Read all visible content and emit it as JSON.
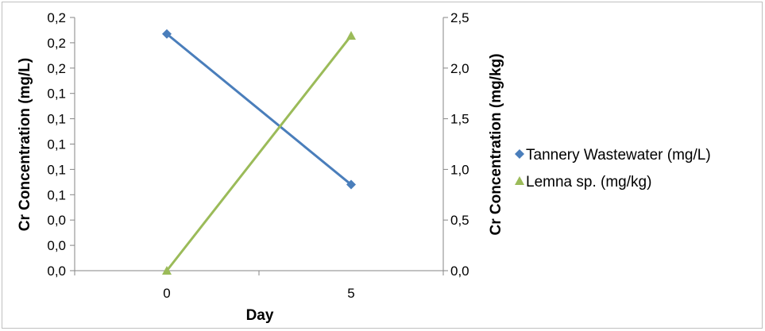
{
  "chart_data": {
    "type": "line",
    "x": [
      0,
      5
    ],
    "x_tick_labels": [
      "0",
      "5"
    ],
    "xlabel": "Day",
    "ylabel_left": "Cr Concentration (mg/L)",
    "ylabel_right": "Cr Concentration (mg/kg)",
    "y_left_tick_labels": [
      "0,0",
      "0,0",
      "0,0",
      "0,1",
      "0,1",
      "0,1",
      "0,1",
      "0,1",
      "0,2",
      "0,2",
      "0,2"
    ],
    "ylim_left": [
      0,
      0.2
    ],
    "y_right_tick_labels": [
      "0,0",
      "0,5",
      "1,0",
      "1,5",
      "2,0",
      "2,5"
    ],
    "ylim_right": [
      0,
      2.5
    ],
    "grid": false,
    "legend_position": "right",
    "series": [
      {
        "name": "Tannery Wastewater (mg/L)",
        "axis": "left",
        "marker": "diamond",
        "color": "#4a7ebb",
        "values": [
          0.187,
          0.068
        ]
      },
      {
        "name": "Lemna sp. (mg/kg)",
        "axis": "right",
        "marker": "triangle",
        "color": "#9bbb59",
        "values": [
          0.0,
          2.32
        ]
      }
    ]
  }
}
